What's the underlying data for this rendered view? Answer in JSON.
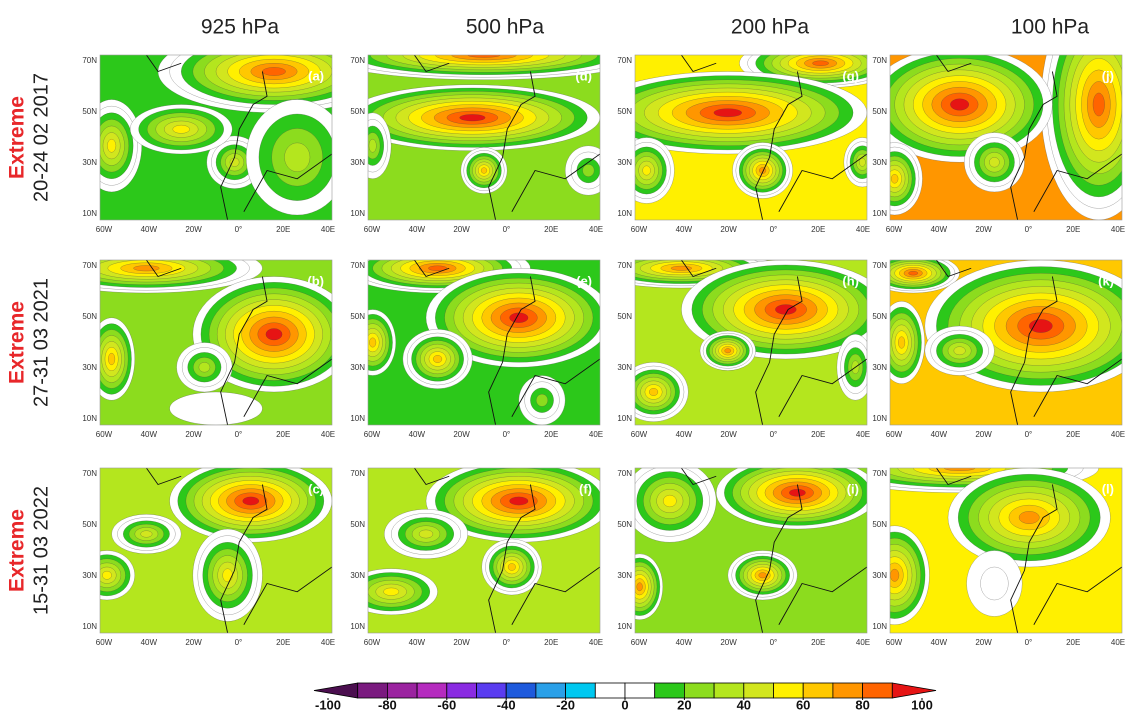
{
  "columns": [
    "925 hPa",
    "500 hPa",
    "200 hPa",
    "100 hPa"
  ],
  "rows": [
    {
      "event": "Extreme",
      "dates": "20-24 02 2017"
    },
    {
      "event": "Extreme",
      "dates": "27-31 03 2021"
    },
    {
      "event": "Extreme",
      "dates": "15-31 03 2022"
    }
  ],
  "panels": [
    [
      "(a)",
      "(d)",
      "(g)",
      "(j)"
    ],
    [
      "(b)",
      "(e)",
      "(h)",
      "(k)"
    ],
    [
      "(c)",
      "(f)",
      "(i)",
      "(l)"
    ]
  ],
  "lat_labels": [
    "70N",
    "50N",
    "30N",
    "10N"
  ],
  "lon_labels": [
    "60W",
    "40W",
    "20W",
    "0°",
    "20E",
    "40E"
  ],
  "colorbar": {
    "ticks": [
      -100,
      -80,
      -60,
      -40,
      -20,
      0,
      20,
      40,
      60,
      80,
      100
    ],
    "colors": [
      "#4b0f4f",
      "#7a1a7f",
      "#9b23a0",
      "#b52bbf",
      "#8a2be2",
      "#5a3cf0",
      "#1e5adc",
      "#2aa0e8",
      "#00c8f0",
      "#ffffff",
      "#ffffff",
      "#2cc81a",
      "#8cdc1e",
      "#b4e61e",
      "#d2e61e",
      "#fff000",
      "#ffc800",
      "#ff9600",
      "#ff6400",
      "#e61414"
    ]
  }
}
